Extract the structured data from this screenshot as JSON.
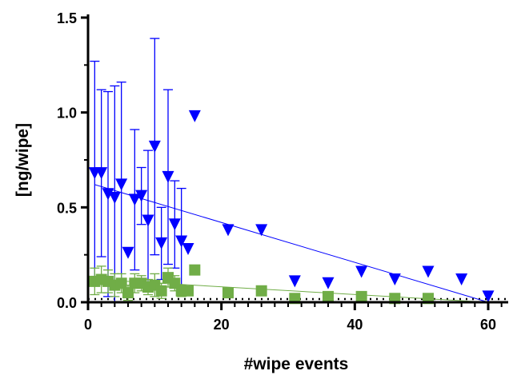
{
  "chart_data": {
    "type": "scatter",
    "title": "",
    "xlabel": "#wipe events",
    "ylabel": "[ng/wipe]",
    "xlim": [
      0,
      63
    ],
    "ylim": [
      0,
      1.5
    ],
    "x_ticks": [
      0,
      20,
      40,
      60
    ],
    "x_minor_step": 2,
    "y_ticks": [
      0.0,
      0.5,
      1.0,
      1.5
    ],
    "y_tick_labels": [
      "0.0",
      "0.5",
      "1.0",
      "1.5"
    ],
    "x_tick_labels": [
      "0",
      "20",
      "40",
      "60"
    ],
    "grid": false,
    "legend": "none",
    "zero_line": "dotted",
    "series": [
      {
        "color": "#0000ff",
        "marker": "triangle-down",
        "points": [
          {
            "x": 1,
            "y": 0.68,
            "err": 0.59
          },
          {
            "x": 2,
            "y": 0.68,
            "err": 0.44
          },
          {
            "x": 3,
            "y": 0.57,
            "err": 0.54
          },
          {
            "x": 4,
            "y": 0.55,
            "err": 0.59
          },
          {
            "x": 5,
            "y": 0.62,
            "err": 0.54
          },
          {
            "x": 6,
            "y": 0.26,
            "err": 0.0
          },
          {
            "x": 7,
            "y": 0.54,
            "err": 0.37
          },
          {
            "x": 8,
            "y": 0.56,
            "err": 0.15
          },
          {
            "x": 9,
            "y": 0.43,
            "err": 0.37
          },
          {
            "x": 10,
            "y": 0.82,
            "err": 0.57
          },
          {
            "x": 11,
            "y": 0.31,
            "err": 0.19
          },
          {
            "x": 12,
            "y": 0.66,
            "err": 0.46
          },
          {
            "x": 13,
            "y": 0.41,
            "err": 0.23
          },
          {
            "x": 14,
            "y": 0.32,
            "err": 0.28
          },
          {
            "x": 15,
            "y": 0.28,
            "err": 0.0
          },
          {
            "x": 16,
            "y": 0.98,
            "err": 0.0
          },
          {
            "x": 21,
            "y": 0.38,
            "err": 0.0
          },
          {
            "x": 26,
            "y": 0.38,
            "err": 0.0
          },
          {
            "x": 31,
            "y": 0.11,
            "err": 0.0
          },
          {
            "x": 36,
            "y": 0.1,
            "err": 0.0
          },
          {
            "x": 41,
            "y": 0.16,
            "err": 0.0
          },
          {
            "x": 46,
            "y": 0.12,
            "err": 0.0
          },
          {
            "x": 51,
            "y": 0.16,
            "err": 0.0
          },
          {
            "x": 56,
            "y": 0.12,
            "err": 0.0
          },
          {
            "x": 60,
            "y": 0.03,
            "err": 0.0
          }
        ],
        "fit": {
          "x1": 1,
          "y1": 0.62,
          "x2": 60,
          "y2": 0.0
        }
      },
      {
        "color": "#70ad47",
        "marker": "square",
        "points": [
          {
            "x": 1,
            "y": 0.11,
            "err": 0.07
          },
          {
            "x": 2,
            "y": 0.12,
            "err": 0.07
          },
          {
            "x": 3,
            "y": 0.11,
            "err": 0.06
          },
          {
            "x": 4,
            "y": 0.09,
            "err": 0.06
          },
          {
            "x": 5,
            "y": 0.1,
            "err": 0.05
          },
          {
            "x": 6,
            "y": 0.05,
            "err": 0.04
          },
          {
            "x": 7,
            "y": 0.1,
            "err": 0.05
          },
          {
            "x": 8,
            "y": 0.1,
            "err": 0.04
          },
          {
            "x": 9,
            "y": 0.08,
            "err": 0.04
          },
          {
            "x": 10,
            "y": 0.09,
            "err": 0.06
          },
          {
            "x": 11,
            "y": 0.06,
            "err": 0.04
          },
          {
            "x": 12,
            "y": 0.13,
            "err": 0.05
          },
          {
            "x": 13,
            "y": 0.1,
            "err": 0.04
          },
          {
            "x": 14,
            "y": 0.06,
            "err": 0.03
          },
          {
            "x": 15,
            "y": 0.06,
            "err": 0.0
          },
          {
            "x": 16,
            "y": 0.17,
            "err": 0.0
          },
          {
            "x": 21,
            "y": 0.05,
            "err": 0.0
          },
          {
            "x": 26,
            "y": 0.06,
            "err": 0.0
          },
          {
            "x": 31,
            "y": 0.02,
            "err": 0.0
          },
          {
            "x": 36,
            "y": 0.03,
            "err": 0.0
          },
          {
            "x": 41,
            "y": 0.03,
            "err": 0.0
          },
          {
            "x": 46,
            "y": 0.02,
            "err": 0.0
          },
          {
            "x": 51,
            "y": 0.02,
            "err": 0.0
          }
        ],
        "fit": {
          "x1": 1,
          "y1": 0.12,
          "x2": 60,
          "y2": 0.0
        }
      }
    ]
  }
}
